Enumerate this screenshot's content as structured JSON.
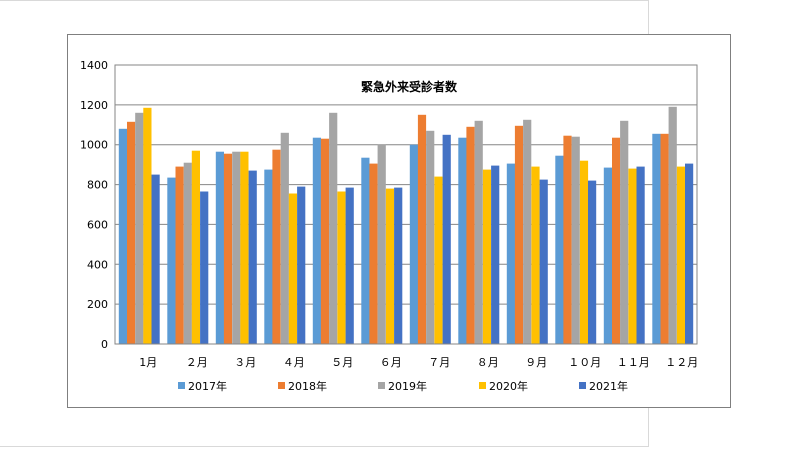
{
  "chart_data": {
    "type": "bar",
    "title": "緊急外来受診者数",
    "categories": [
      "1月",
      "２月",
      "３月",
      "４月",
      "５月",
      "６月",
      "７月",
      "８月",
      "９月",
      "１０月",
      "１１月",
      "１２月"
    ],
    "series": [
      {
        "name": "2017年",
        "color": "#5b9bd5",
        "values": [
          1080,
          835,
          965,
          875,
          1035,
          935,
          1000,
          1035,
          905,
          945,
          885,
          1055
        ]
      },
      {
        "name": "2018年",
        "color": "#ed7d31",
        "values": [
          1115,
          890,
          955,
          975,
          1030,
          905,
          1150,
          1090,
          1095,
          1045,
          1035,
          1055
        ]
      },
      {
        "name": "2019年",
        "color": "#a5a5a5",
        "values": [
          1160,
          910,
          965,
          1060,
          1160,
          1000,
          1070,
          1120,
          1125,
          1040,
          1120,
          1190
        ]
      },
      {
        "name": "2020年",
        "color": "#ffc000",
        "values": [
          1185,
          970,
          965,
          755,
          765,
          780,
          840,
          875,
          890,
          920,
          880,
          890
        ]
      },
      {
        "name": "2021年",
        "color": "#4472c4",
        "values": [
          850,
          765,
          870,
          790,
          785,
          785,
          1050,
          895,
          825,
          820,
          890,
          905
        ]
      }
    ],
    "ylim": [
      0,
      1400
    ],
    "yticks": [
      0,
      200,
      400,
      600,
      800,
      1000,
      1200,
      1400
    ],
    "grid": true,
    "legend_position": "bottom"
  }
}
